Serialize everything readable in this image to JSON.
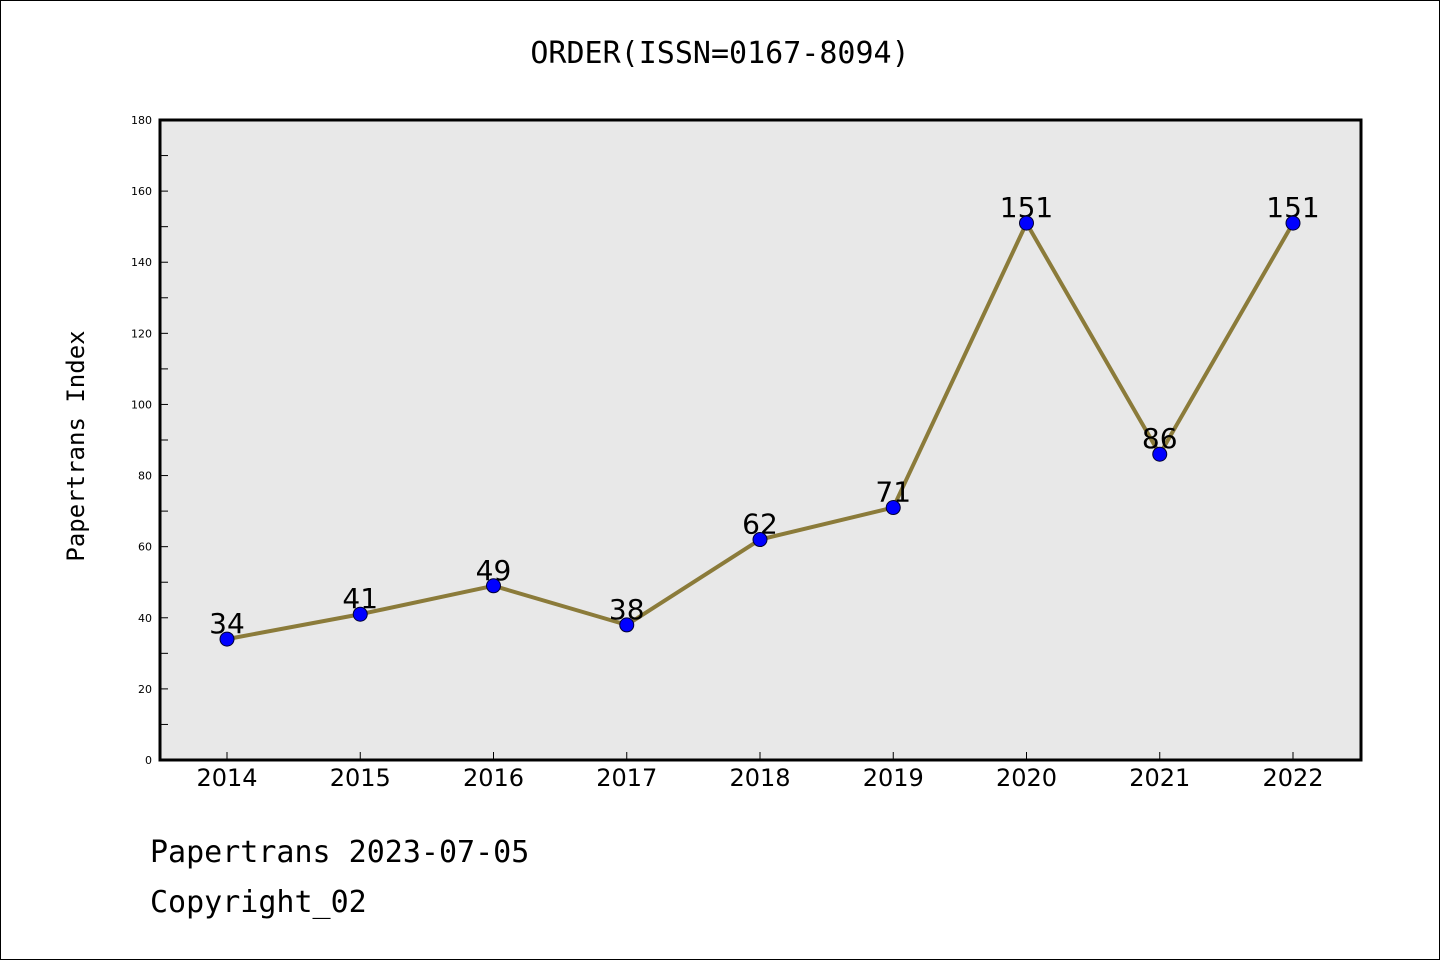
{
  "chart_data": {
    "type": "line",
    "title": "ORDER(ISSN=0167-8094)",
    "ylabel": "Papertrans Index",
    "xlabel": "",
    "categories": [
      "2014",
      "2015",
      "2016",
      "2017",
      "2018",
      "2019",
      "2020",
      "2021",
      "2022"
    ],
    "values": [
      34,
      41,
      49,
      38,
      62,
      71,
      151,
      86,
      151
    ],
    "ylim": [
      0,
      180
    ],
    "yticks": [
      0,
      20,
      40,
      60,
      80,
      100,
      120,
      140,
      160,
      180
    ],
    "grid": false,
    "colors": {
      "line": "#8b7b3a",
      "marker": "#0000ff",
      "plot_bg": "#e8e8e8"
    }
  },
  "footer": {
    "line1": "Papertrans 2023-07-05",
    "line2": "Copyright_02"
  }
}
